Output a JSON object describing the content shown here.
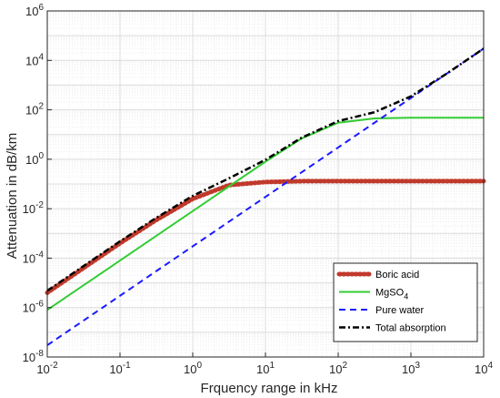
{
  "chart_data": {
    "type": "line",
    "xscale": "log",
    "yscale": "log",
    "xlim": [
      0.01,
      10000
    ],
    "ylim": [
      1e-08,
      1000000
    ],
    "grid": true,
    "legend_position": "bottom-right",
    "xlabel": "Frquency range in kHz",
    "ylabel": "Attenuation in dB/km",
    "x_ticks": [
      {
        "value": 0.01,
        "base": "10",
        "exp": "-2"
      },
      {
        "value": 0.1,
        "base": "10",
        "exp": "-1"
      },
      {
        "value": 1,
        "base": "10",
        "exp": "0"
      },
      {
        "value": 10,
        "base": "10",
        "exp": "1"
      },
      {
        "value": 100,
        "base": "10",
        "exp": "2"
      },
      {
        "value": 1000,
        "base": "10",
        "exp": "3"
      },
      {
        "value": 10000,
        "base": "10",
        "exp": "4"
      }
    ],
    "y_ticks": [
      {
        "value": 1e-08,
        "base": "10",
        "exp": "-8"
      },
      {
        "value": 1e-06,
        "base": "10",
        "exp": "-6"
      },
      {
        "value": 0.0001,
        "base": "10",
        "exp": "-4"
      },
      {
        "value": 0.01,
        "base": "10",
        "exp": "-2"
      },
      {
        "value": 1,
        "base": "10",
        "exp": "0"
      },
      {
        "value": 100,
        "base": "10",
        "exp": "2"
      },
      {
        "value": 10000,
        "base": "10",
        "exp": "4"
      },
      {
        "value": 1000000,
        "base": "10",
        "exp": "6"
      }
    ],
    "x": [
      0.01,
      0.0316,
      0.1,
      0.316,
      1,
      3.16,
      10,
      31.6,
      100,
      316,
      1000,
      3160,
      10000
    ],
    "series": [
      {
        "name": "Boric acid",
        "legend_main": "Boric acid",
        "legend_sub": "",
        "color": "#c0392b",
        "dash": "dotted-thick",
        "values": [
          4e-06,
          4e-05,
          0.0004,
          0.0035,
          0.025,
          0.09,
          0.12,
          0.13,
          0.13,
          0.13,
          0.13,
          0.13,
          0.13
        ]
      },
      {
        "name": "MgSO4",
        "legend_main": "MgSO",
        "legend_sub": "4",
        "color": "#33cc33",
        "dash": "solid",
        "values": [
          8e-07,
          8e-06,
          8e-05,
          0.0008,
          0.008,
          0.08,
          0.8,
          7,
          30,
          45,
          48,
          48,
          48
        ]
      },
      {
        "name": "Pure water",
        "legend_main": "Pure water",
        "legend_sub": "",
        "color": "#1a1aff",
        "dash": "dashed",
        "values": [
          3e-08,
          3e-07,
          3e-06,
          3e-05,
          0.0003,
          0.003,
          0.03,
          0.3,
          3,
          30,
          300,
          3000,
          30000
        ]
      },
      {
        "name": "Total absorption",
        "legend_main": "Total absorption",
        "legend_sub": "",
        "color": "#000000",
        "dash": "dashdot",
        "values": [
          4.8e-06,
          4.8e-05,
          0.00048,
          0.0043,
          0.033,
          0.17,
          0.95,
          7.5,
          35,
          80,
          350,
          3000,
          30000
        ]
      }
    ]
  }
}
